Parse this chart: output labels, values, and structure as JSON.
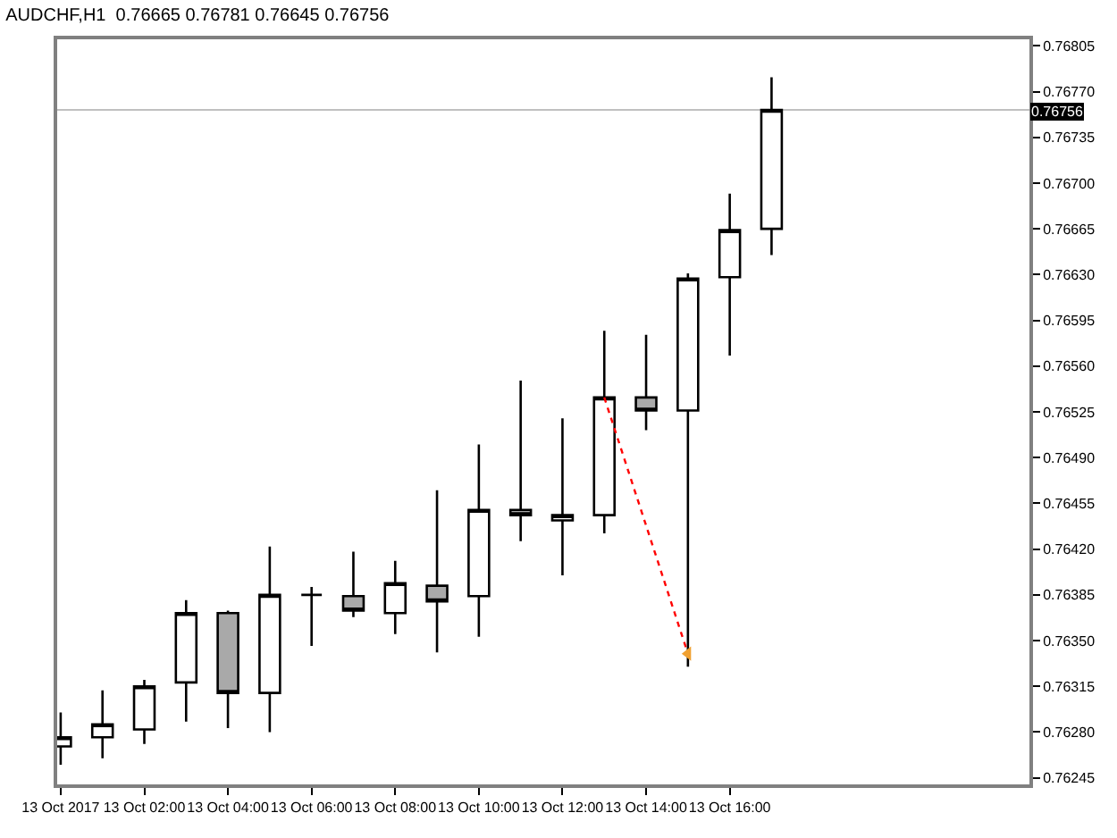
{
  "chart_data": {
    "type": "candlestick",
    "title": "AUDCHF,H1  0.76665 0.76781 0.76645 0.76756",
    "x": [
      "2017-10-13T00:00",
      "2017-10-13T01:00",
      "2017-10-13T02:00",
      "2017-10-13T03:00",
      "2017-10-13T04:00",
      "2017-10-13T05:00",
      "2017-10-13T06:00",
      "2017-10-13T07:00",
      "2017-10-13T08:00",
      "2017-10-13T09:00",
      "2017-10-13T10:00",
      "2017-10-13T11:00",
      "2017-10-13T12:00",
      "2017-10-13T13:00",
      "2017-10-13T14:00",
      "2017-10-13T15:00",
      "2017-10-13T16:00",
      "2017-10-13T17:00"
    ],
    "ohlc": [
      [
        0.76269,
        0.76295,
        0.76255,
        0.76276
      ],
      [
        0.76276,
        0.76312,
        0.7626,
        0.76286
      ],
      [
        0.76282,
        0.7632,
        0.76271,
        0.76315
      ],
      [
        0.76318,
        0.76381,
        0.76288,
        0.76371
      ],
      [
        0.76371,
        0.76373,
        0.76283,
        0.7631
      ],
      [
        0.7631,
        0.76422,
        0.7628,
        0.76385
      ],
      [
        0.76385,
        0.76391,
        0.76346,
        0.76385
      ],
      [
        0.76384,
        0.76418,
        0.76368,
        0.76373
      ],
      [
        0.76371,
        0.76411,
        0.76355,
        0.76394
      ],
      [
        0.76392,
        0.76465,
        0.76341,
        0.7638
      ],
      [
        0.76384,
        0.765,
        0.76353,
        0.7645
      ],
      [
        0.7645,
        0.76549,
        0.76426,
        0.76446
      ],
      [
        0.76442,
        0.7652,
        0.764,
        0.76446
      ],
      [
        0.76446,
        0.76587,
        0.76432,
        0.76536
      ],
      [
        0.76536,
        0.76584,
        0.76511,
        0.76526
      ],
      [
        0.76526,
        0.76631,
        0.7633,
        0.76627
      ],
      [
        0.76628,
        0.76692,
        0.76568,
        0.76664
      ],
      [
        0.76665,
        0.76781,
        0.76645,
        0.76756
      ]
    ],
    "colors": [
      "#ffffff",
      "#ffffff",
      "#ffffff",
      "#ffffff",
      "#a9a9a9",
      "#ffffff",
      "#000000",
      "#a9a9a9",
      "#ffffff",
      "#a9a9a9",
      "#ffffff",
      "#a9a9a9",
      "#ffffff",
      "#ffffff",
      "#a9a9a9",
      "#ffffff",
      "#ffffff",
      "#ffffff"
    ],
    "color": "#000000",
    "series": [
      {
        "type": "line",
        "x": [
          "2017-10-13T13:00",
          "2017-10-13T15:00"
        ],
        "values": [
          0.76536,
          0.7634
        ],
        "color": "#ff0000",
        "line_style": "dotted"
      },
      {
        "type": "scatter",
        "x": [
          "2017-10-13T15:00"
        ],
        "values": [
          0.7634
        ],
        "color": "#f0a030",
        "marker": "triangle"
      }
    ],
    "xlim": [
      "2017-10-12T23:55",
      "2017-10-13T23:10"
    ],
    "xticks": [
      {
        "value": "2017-10-13T00:00",
        "label": "13 Oct 2017"
      },
      {
        "value": "2017-10-13T02:00",
        "label": "13 Oct 02:00"
      },
      {
        "value": "2017-10-13T04:00",
        "label": "13 Oct 04:00"
      },
      {
        "value": "2017-10-13T06:00",
        "label": "13 Oct 06:00"
      },
      {
        "value": "2017-10-13T08:00",
        "label": "13 Oct 08:00"
      },
      {
        "value": "2017-10-13T10:00",
        "label": "13 Oct 10:00"
      },
      {
        "value": "2017-10-13T12:00",
        "label": "13 Oct 12:00"
      },
      {
        "value": "2017-10-13T14:00",
        "label": "13 Oct 14:00"
      },
      {
        "value": "2017-10-13T16:00",
        "label": "13 Oct 16:00"
      }
    ],
    "ylim": [
      0.7624,
      0.7681
    ],
    "yticks": [
      {
        "value": 0.76245,
        "label": "0.76245"
      },
      {
        "value": 0.7628,
        "label": "0.76280"
      },
      {
        "value": 0.76315,
        "label": "0.76315"
      },
      {
        "value": 0.7635,
        "label": "0.76350"
      },
      {
        "value": 0.76385,
        "label": "0.76385"
      },
      {
        "value": 0.7642,
        "label": "0.76420"
      },
      {
        "value": 0.76455,
        "label": "0.76455"
      },
      {
        "value": 0.7649,
        "label": "0.76490"
      },
      {
        "value": 0.76525,
        "label": "0.76525"
      },
      {
        "value": 0.7656,
        "label": "0.76560"
      },
      {
        "value": 0.76595,
        "label": "0.76595"
      },
      {
        "value": 0.7663,
        "label": "0.76630"
      },
      {
        "value": 0.76665,
        "label": "0.76665"
      },
      {
        "value": 0.767,
        "label": "0.76700"
      },
      {
        "value": 0.76735,
        "label": "0.76735"
      },
      {
        "value": 0.7677,
        "label": "0.76770"
      },
      {
        "value": 0.76805,
        "label": "0.76805"
      }
    ],
    "ref_lines": [
      {
        "axis": "y",
        "value": 0.76756,
        "label": "0.76756",
        "color": "#c0c0c0"
      }
    ],
    "grid": false
  }
}
